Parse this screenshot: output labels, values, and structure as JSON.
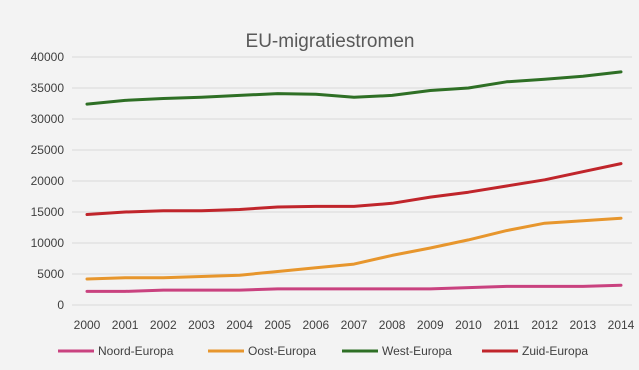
{
  "chart_data": {
    "type": "line",
    "title": "EU-migratiestromen",
    "xlabel": "",
    "ylabel": "",
    "categories": [
      "2000",
      "2001",
      "2002",
      "2003",
      "2004",
      "2005",
      "2006",
      "2007",
      "2008",
      "2009",
      "2010",
      "2011",
      "2012",
      "2013",
      "2014"
    ],
    "ylim": [
      0,
      40000
    ],
    "yticks": [
      "0",
      "5000",
      "10000",
      "15000",
      "20000",
      "25000",
      "30000",
      "35000",
      "40000"
    ],
    "grid": true,
    "legend_position": "bottom",
    "series": [
      {
        "name": "Noord-Europa",
        "color": "#c9427f",
        "values": [
          2200,
          2200,
          2400,
          2400,
          2400,
          2600,
          2600,
          2600,
          2600,
          2600,
          2800,
          3000,
          3000,
          3000,
          3200
        ]
      },
      {
        "name": "Oost-Europa",
        "color": "#e7962d",
        "values": [
          4200,
          4400,
          4400,
          4600,
          4800,
          5400,
          6000,
          6600,
          8000,
          9200,
          10500,
          12000,
          13200,
          13600,
          14000
        ]
      },
      {
        "name": "West-Europa",
        "color": "#2e6f25",
        "values": [
          32400,
          33000,
          33300,
          33500,
          33800,
          34100,
          34000,
          33500,
          33800,
          34600,
          35000,
          36000,
          36400,
          36900,
          37600
        ]
      },
      {
        "name": "Zuid-Europa",
        "color": "#c0252b",
        "values": [
          14600,
          15000,
          15200,
          15200,
          15400,
          15800,
          15900,
          15900,
          16400,
          17400,
          18200,
          19200,
          20200,
          21500,
          22800
        ]
      }
    ]
  }
}
